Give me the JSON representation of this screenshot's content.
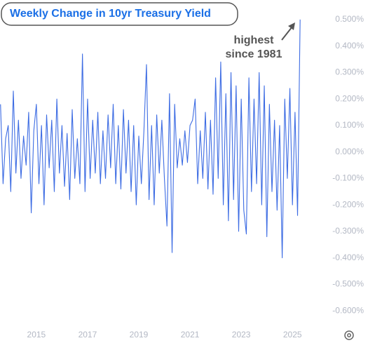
{
  "chart_data": {
    "type": "line",
    "title": "Weekly Change in 10yr Treasury Yield",
    "annotation": [
      "highest",
      "since 1981"
    ],
    "x": [
      2013.6,
      2013.7,
      2013.8,
      2013.9,
      2014.0,
      2014.1,
      2014.2,
      2014.3,
      2014.4,
      2014.5,
      2014.6,
      2014.7,
      2014.8,
      2014.9,
      2015.0,
      2015.1,
      2015.2,
      2015.3,
      2015.4,
      2015.5,
      2015.6,
      2015.7,
      2015.8,
      2015.9,
      2016.0,
      2016.1,
      2016.2,
      2016.3,
      2016.4,
      2016.5,
      2016.6,
      2016.7,
      2016.8,
      2016.9,
      2017.0,
      2017.1,
      2017.2,
      2017.3,
      2017.4,
      2017.5,
      2017.6,
      2017.7,
      2017.8,
      2017.9,
      2018.0,
      2018.1,
      2018.2,
      2018.3,
      2018.4,
      2018.5,
      2018.6,
      2018.7,
      2018.8,
      2018.9,
      2019.0,
      2019.1,
      2019.2,
      2019.3,
      2019.4,
      2019.5,
      2019.6,
      2019.7,
      2019.8,
      2019.9,
      2020.0,
      2020.1,
      2020.2,
      2020.3,
      2020.4,
      2020.5,
      2020.6,
      2020.7,
      2020.8,
      2020.9,
      2021.0,
      2021.1,
      2021.2,
      2021.3,
      2021.4,
      2021.5,
      2021.6,
      2021.7,
      2021.8,
      2021.9,
      2022.0,
      2022.1,
      2022.2,
      2022.3,
      2022.4,
      2022.5,
      2022.6,
      2022.7,
      2022.8,
      2022.9,
      2023.0,
      2023.1,
      2023.2,
      2023.3,
      2023.4,
      2023.5,
      2023.6,
      2023.7,
      2023.8,
      2023.9,
      2024.0,
      2024.1,
      2024.2,
      2024.3,
      2024.4,
      2024.5,
      2024.6,
      2024.7,
      2024.8,
      2024.9,
      2025.0,
      2025.1,
      2025.2,
      2025.3
    ],
    "series": [
      {
        "color": "#3d6ce3",
        "values": [
          0.18,
          -0.12,
          0.05,
          0.1,
          -0.15,
          0.23,
          -0.08,
          0.12,
          -0.1,
          0.06,
          -0.05,
          0.15,
          -0.23,
          0.08,
          0.18,
          -0.12,
          0.1,
          -0.2,
          0.14,
          -0.06,
          0.12,
          -0.15,
          0.2,
          -0.08,
          0.1,
          -0.13,
          0.07,
          -0.18,
          0.16,
          -0.1,
          0.05,
          -0.12,
          0.37,
          -0.15,
          0.2,
          -0.1,
          0.12,
          -0.08,
          0.15,
          -0.12,
          0.08,
          -0.1,
          0.14,
          -0.06,
          0.18,
          -0.12,
          0.1,
          -0.14,
          0.16,
          -0.08,
          0.12,
          -0.15,
          0.1,
          -0.2,
          0.06,
          -0.12,
          0.08,
          0.33,
          -0.18,
          0.1,
          -0.2,
          0.14,
          -0.08,
          0.12,
          -0.1,
          -0.28,
          0.22,
          -0.38,
          0.18,
          -0.06,
          0.05,
          -0.05,
          0.08,
          -0.04,
          0.1,
          0.12,
          0.2,
          -0.12,
          0.08,
          -0.1,
          0.15,
          -0.14,
          0.12,
          -0.16,
          0.28,
          -0.1,
          0.34,
          -0.2,
          0.22,
          -0.26,
          0.3,
          -0.18,
          0.25,
          -0.3,
          0.2,
          -0.22,
          -0.31,
          0.28,
          -0.15,
          0.2,
          -0.12,
          0.3,
          -0.2,
          0.25,
          -0.32,
          0.18,
          -0.15,
          0.12,
          -0.22,
          0.1,
          -0.4,
          0.2,
          -0.1,
          0.24,
          -0.2,
          0.15,
          -0.24,
          0.5
        ]
      }
    ],
    "xlim": [
      2013.58,
      2025.35
    ],
    "xticks": [
      2015,
      2017,
      2019,
      2021,
      2023,
      2025
    ],
    "ylim": [
      -0.65,
      0.55
    ],
    "yticks": [
      {
        "value": 0.5,
        "label": "0.500%"
      },
      {
        "value": 0.4,
        "label": "0.400%"
      },
      {
        "value": 0.3,
        "label": "0.300%"
      },
      {
        "value": 0.2,
        "label": "0.200%"
      },
      {
        "value": 0.1,
        "label": "0.100%"
      },
      {
        "value": 0,
        "label": "0.000%"
      },
      {
        "value": -0.1,
        "label": "-0.100%"
      },
      {
        "value": -0.2,
        "label": "-0.200%"
      },
      {
        "value": -0.3,
        "label": "-0.300%"
      },
      {
        "value": -0.4,
        "label": "-0.400%"
      },
      {
        "value": -0.5,
        "label": "-0.500%"
      },
      {
        "value": -0.6,
        "label": "-0.600%"
      }
    ],
    "grid": false
  }
}
